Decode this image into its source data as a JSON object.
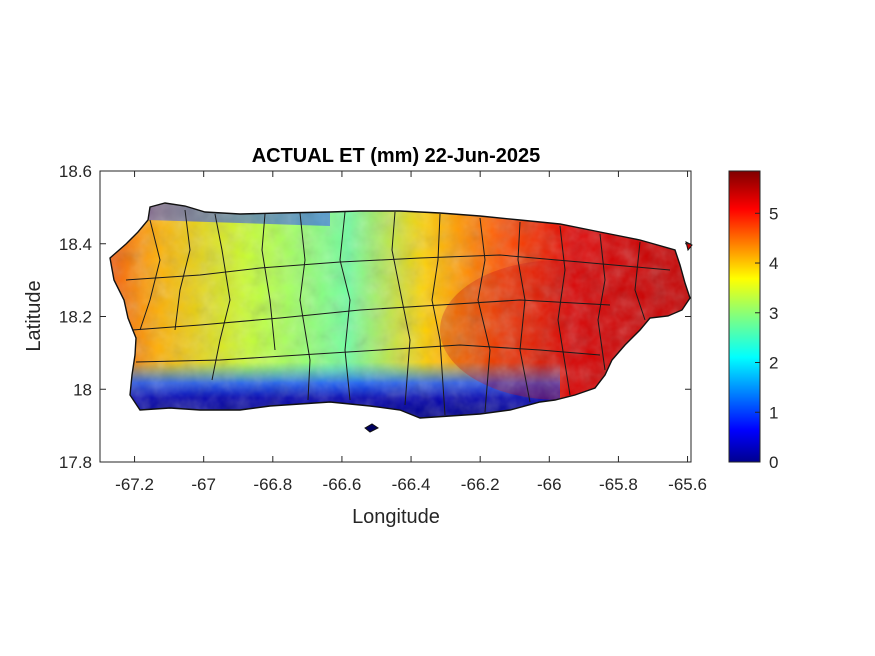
{
  "title": "ACTUAL ET (mm) 22-Jun-2025",
  "axes": {
    "xlabel": "Longitude",
    "ylabel": "Latitude",
    "xlim": [
      -67.3,
      -65.59
    ],
    "ylim": [
      17.8,
      18.6
    ],
    "xticks": [
      -67.2,
      -67,
      -66.8,
      -66.6,
      -66.4,
      -66.2,
      -66,
      -65.8,
      -65.6
    ],
    "xtick_labels": [
      "-67.2",
      "-67",
      "-66.8",
      "-66.6",
      "-66.4",
      "-66.2",
      "-66",
      "-65.8",
      "-65.6"
    ],
    "yticks": [
      17.8,
      18,
      18.2,
      18.4,
      18.6
    ],
    "ytick_labels": [
      "17.8",
      "18",
      "18.2",
      "18.4",
      "18.6"
    ]
  },
  "colorbar": {
    "colormap": "jet",
    "range": [
      0,
      5.85
    ],
    "ticks": [
      0,
      1,
      2,
      3,
      4,
      5
    ],
    "tick_labels": [
      "0",
      "1",
      "2",
      "3",
      "4",
      "5"
    ]
  },
  "map": {
    "region": "Puerto Rico",
    "variable": "Actual evapotranspiration (mm)",
    "regional_pattern": {
      "south_coast": "0-1",
      "northwest_coast_edge": "0-1",
      "west": "3.5-5",
      "central_north": "2-4",
      "southeast_east": "5-5.8"
    }
  }
}
